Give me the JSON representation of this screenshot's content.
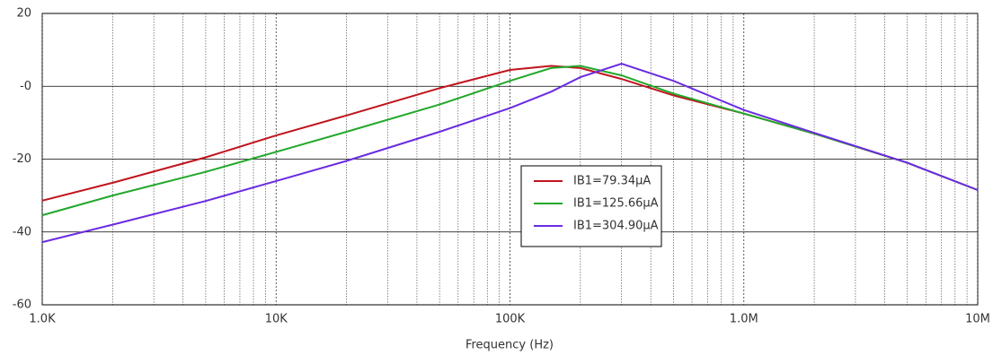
{
  "chart_data": {
    "type": "line",
    "xlabel": "Frequency (Hz)",
    "x": [
      1000,
      2000,
      5000,
      10000,
      20000,
      50000,
      100000,
      150000,
      200000,
      300000,
      500000,
      1000000,
      2000000,
      5000000,
      10000000
    ],
    "series": [
      {
        "name": "IB1=79.34μA",
        "color": "#c0141e",
        "values": [
          -31.4,
          -26.5,
          -19.5,
          -13.5,
          -8,
          -0.5,
          4.5,
          5.6,
          5,
          2,
          -2.5,
          -7.5,
          -13,
          -21,
          -28.5
        ]
      },
      {
        "name": "IB1=125.66μA",
        "color": "#22a82a",
        "values": [
          -35.4,
          -30,
          -23.5,
          -18,
          -12.5,
          -5,
          1.5,
          5,
          5.6,
          3,
          -2,
          -7.5,
          -13,
          -21,
          -28.5
        ]
      },
      {
        "name": "IB1=304.90μA",
        "color": "#6a2be2",
        "values": [
          -42.8,
          -38,
          -31.5,
          -26,
          -20.5,
          -12.5,
          -6,
          -1.5,
          2.5,
          6.2,
          1.5,
          -6.5,
          -12.8,
          -21,
          -28.5
        ]
      }
    ],
    "xlim": [
      1000,
      10000000
    ],
    "xscale": "log",
    "xticks": [
      {
        "value": 1000,
        "label": "1.0K"
      },
      {
        "value": 10000,
        "label": "10K"
      },
      {
        "value": 100000,
        "label": "100K"
      },
      {
        "value": 1000000,
        "label": "1.0M"
      },
      {
        "value": 10000000,
        "label": "10M"
      }
    ],
    "ylim": [
      -60,
      20
    ],
    "yticks": [
      20,
      {
        "value": 0,
        "label": "-0"
      },
      -20,
      -40,
      -60
    ],
    "grid": true,
    "minor_grid": true
  }
}
